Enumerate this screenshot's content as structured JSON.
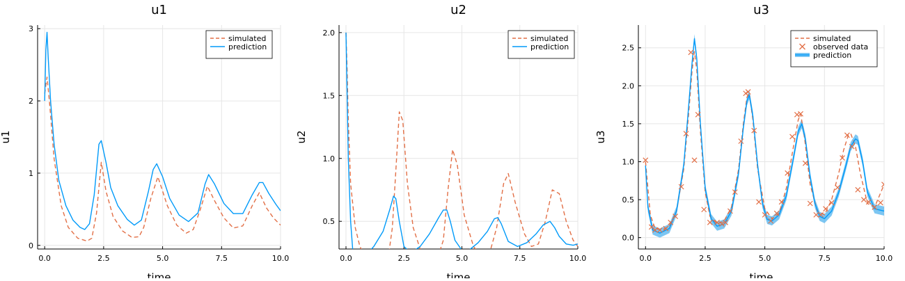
{
  "colors": {
    "simulated": "#e26f46",
    "prediction": "#009af9",
    "band": "#52b3ee"
  },
  "chart_data": [
    {
      "type": "line",
      "title": "u1",
      "xlabel": "time",
      "ylabel": "u1",
      "xlim": [
        -0.3,
        10.0
      ],
      "ylim": [
        -0.05,
        3.05
      ],
      "xticks": [
        0.0,
        2.5,
        5.0,
        7.5,
        10.0
      ],
      "xtick_labels": [
        "0.0",
        "2.5",
        "5.0",
        "7.5",
        "10.0"
      ],
      "yticks": [
        0,
        1,
        2,
        3
      ],
      "ytick_labels": [
        "0",
        "1",
        "2",
        "3"
      ],
      "grid": true,
      "legend_position": "top-right",
      "legend": [
        {
          "label": "simulated",
          "kind": "dashed"
        },
        {
          "label": "prediction",
          "kind": "line"
        }
      ],
      "series": [
        {
          "name": "simulated",
          "style": "dashed",
          "x": [
            0.0,
            0.1,
            0.2,
            0.4,
            0.7,
            1.0,
            1.4,
            1.8,
            2.0,
            2.2,
            2.4,
            2.6,
            2.9,
            3.3,
            3.7,
            4.0,
            4.2,
            4.5,
            4.8,
            5.2,
            5.6,
            6.0,
            6.3,
            6.6,
            6.9,
            7.2,
            7.6,
            8.0,
            8.4,
            8.8,
            9.1,
            9.4,
            9.7,
            10.0
          ],
          "y": [
            2.1,
            2.33,
            2.0,
            1.2,
            0.55,
            0.25,
            0.1,
            0.06,
            0.1,
            0.45,
            1.15,
            0.75,
            0.4,
            0.2,
            0.11,
            0.12,
            0.25,
            0.65,
            0.95,
            0.55,
            0.28,
            0.17,
            0.22,
            0.5,
            0.82,
            0.62,
            0.38,
            0.24,
            0.27,
            0.55,
            0.73,
            0.52,
            0.38,
            0.28
          ]
        },
        {
          "name": "prediction",
          "style": "solid",
          "x": [
            0.0,
            0.05,
            0.1,
            0.15,
            0.25,
            0.4,
            0.6,
            0.9,
            1.2,
            1.5,
            1.7,
            1.9,
            2.1,
            2.3,
            2.4,
            2.6,
            2.8,
            3.1,
            3.5,
            3.8,
            4.1,
            4.4,
            4.6,
            4.75,
            5.0,
            5.3,
            5.7,
            6.1,
            6.5,
            6.8,
            6.95,
            7.2,
            7.6,
            8.0,
            8.4,
            8.8,
            9.1,
            9.25,
            9.5,
            9.8,
            10.0
          ],
          "y": [
            2.0,
            2.7,
            2.95,
            2.6,
            2.0,
            1.4,
            0.9,
            0.55,
            0.35,
            0.25,
            0.22,
            0.3,
            0.7,
            1.4,
            1.45,
            1.15,
            0.8,
            0.55,
            0.36,
            0.28,
            0.35,
            0.75,
            1.05,
            1.13,
            0.95,
            0.65,
            0.42,
            0.33,
            0.45,
            0.85,
            0.98,
            0.85,
            0.58,
            0.44,
            0.44,
            0.7,
            0.87,
            0.87,
            0.72,
            0.57,
            0.48
          ]
        }
      ]
    },
    {
      "type": "line",
      "title": "u2",
      "xlabel": "time",
      "ylabel": "u2",
      "xlim": [
        -0.3,
        10.0
      ],
      "ylim": [
        0.28,
        2.06
      ],
      "xticks": [
        0.0,
        2.5,
        5.0,
        7.5,
        10.0
      ],
      "xtick_labels": [
        "0.0",
        "2.5",
        "5.0",
        "7.5",
        "10.0"
      ],
      "yticks": [
        0.5,
        1.0,
        1.5,
        2.0
      ],
      "ytick_labels": [
        "0.5",
        "1.0",
        "1.5",
        "2.0"
      ],
      "grid": true,
      "legend_position": "top-right",
      "legend": [
        {
          "label": "simulated",
          "kind": "dashed"
        },
        {
          "label": "prediction",
          "kind": "line"
        }
      ],
      "series": [
        {
          "name": "simulated",
          "style": "dashed",
          "x": [
            0.0,
            0.05,
            0.1,
            0.2,
            0.4,
            0.6,
            0.9,
            1.2,
            1.5,
            1.8,
            2.0,
            2.15,
            2.3,
            2.45,
            2.65,
            2.9,
            3.2,
            3.6,
            3.9,
            4.2,
            4.4,
            4.6,
            4.8,
            5.1,
            5.5,
            5.9,
            6.2,
            6.5,
            6.8,
            7.0,
            7.3,
            7.7,
            8.0,
            8.3,
            8.6,
            8.9,
            9.2,
            9.5,
            9.8,
            10.0
          ],
          "y": [
            2.0,
            1.7,
            1.3,
            0.8,
            0.45,
            0.3,
            0.2,
            0.15,
            0.13,
            0.18,
            0.45,
            0.9,
            1.37,
            1.3,
            0.8,
            0.45,
            0.28,
            0.2,
            0.18,
            0.35,
            0.75,
            1.07,
            0.95,
            0.55,
            0.3,
            0.21,
            0.25,
            0.45,
            0.8,
            0.88,
            0.65,
            0.4,
            0.3,
            0.32,
            0.5,
            0.75,
            0.72,
            0.5,
            0.35,
            0.3
          ]
        },
        {
          "name": "prediction",
          "style": "solid",
          "x": [
            0.0,
            0.05,
            0.1,
            0.2,
            0.3,
            0.5,
            0.8,
            1.2,
            1.6,
            1.9,
            2.05,
            2.15,
            2.3,
            2.5,
            2.8,
            3.2,
            3.6,
            4.0,
            4.2,
            4.35,
            4.5,
            4.7,
            5.0,
            5.3,
            5.7,
            6.1,
            6.4,
            6.55,
            6.7,
            7.0,
            7.4,
            7.8,
            8.2,
            8.5,
            8.8,
            9.0,
            9.2,
            9.5,
            9.8,
            10.0
          ],
          "y": [
            2.0,
            1.5,
            1.0,
            0.5,
            0.25,
            0.2,
            0.22,
            0.3,
            0.42,
            0.6,
            0.7,
            0.68,
            0.5,
            0.3,
            0.25,
            0.3,
            0.4,
            0.53,
            0.59,
            0.59,
            0.5,
            0.35,
            0.27,
            0.27,
            0.33,
            0.42,
            0.52,
            0.53,
            0.48,
            0.34,
            0.3,
            0.33,
            0.4,
            0.47,
            0.5,
            0.45,
            0.38,
            0.32,
            0.31,
            0.32
          ]
        }
      ]
    },
    {
      "type": "line",
      "title": "u3",
      "xlabel": "time",
      "ylabel": "u3",
      "xlim": [
        -0.3,
        10.0
      ],
      "ylim": [
        -0.15,
        2.8
      ],
      "xticks": [
        0.0,
        2.5,
        5.0,
        7.5,
        10.0
      ],
      "xtick_labels": [
        "0.0",
        "2.5",
        "5.0",
        "7.5",
        "10.0"
      ],
      "yticks": [
        0.0,
        0.5,
        1.0,
        1.5,
        2.0,
        2.5
      ],
      "ytick_labels": [
        "0.0",
        "0.5",
        "1.0",
        "1.5",
        "2.0",
        "2.5"
      ],
      "grid": true,
      "legend_position": "top-right",
      "legend": [
        {
          "label": "simulated",
          "kind": "dashed"
        },
        {
          "label": "observed data",
          "kind": "cross"
        },
        {
          "label": "prediction",
          "kind": "band"
        }
      ],
      "series": [
        {
          "name": "simulated",
          "style": "dashed",
          "x": [
            0.0,
            0.2,
            0.4,
            0.7,
            1.0,
            1.3,
            1.6,
            1.8,
            1.95,
            2.05,
            2.15,
            2.3,
            2.5,
            2.7,
            3.0,
            3.3,
            3.6,
            3.9,
            4.1,
            4.25,
            4.35,
            4.5,
            4.7,
            5.0,
            5.3,
            5.6,
            5.9,
            6.2,
            6.4,
            6.5,
            6.65,
            6.9,
            7.2,
            7.5,
            7.8,
            8.1,
            8.3,
            8.5,
            8.6,
            8.8,
            9.0,
            9.3,
            9.6,
            10.0
          ],
          "y": [
            1.0,
            0.3,
            0.12,
            0.1,
            0.15,
            0.35,
            0.9,
            1.6,
            2.2,
            2.45,
            2.2,
            1.4,
            0.6,
            0.28,
            0.18,
            0.22,
            0.4,
            0.9,
            1.5,
            1.85,
            1.9,
            1.55,
            0.9,
            0.38,
            0.25,
            0.32,
            0.65,
            1.2,
            1.55,
            1.63,
            1.35,
            0.7,
            0.35,
            0.3,
            0.5,
            0.85,
            1.15,
            1.35,
            1.37,
            1.2,
            0.85,
            0.45,
            0.4,
            0.7
          ]
        },
        {
          "name": "prediction",
          "style": "solid",
          "x": [
            0.0,
            0.1,
            0.3,
            0.6,
            1.0,
            1.3,
            1.6,
            1.8,
            1.95,
            2.05,
            2.15,
            2.3,
            2.5,
            2.75,
            3.0,
            3.3,
            3.6,
            3.9,
            4.1,
            4.25,
            4.35,
            4.5,
            4.7,
            4.9,
            5.1,
            5.3,
            5.6,
            5.9,
            6.2,
            6.4,
            6.55,
            6.7,
            6.9,
            7.1,
            7.3,
            7.5,
            7.8,
            8.1,
            8.4,
            8.6,
            8.8,
            8.9,
            9.1,
            9.3,
            9.6,
            10.0
          ],
          "y": [
            0.95,
            0.4,
            0.1,
            0.06,
            0.12,
            0.35,
            0.95,
            1.7,
            2.3,
            2.62,
            2.35,
            1.5,
            0.65,
            0.25,
            0.15,
            0.18,
            0.35,
            0.85,
            1.45,
            1.8,
            1.88,
            1.6,
            0.95,
            0.45,
            0.24,
            0.22,
            0.3,
            0.55,
            1.05,
            1.4,
            1.5,
            1.3,
            0.8,
            0.45,
            0.28,
            0.25,
            0.35,
            0.6,
            0.95,
            1.2,
            1.3,
            1.28,
            1.0,
            0.6,
            0.38,
            0.35
          ]
        }
      ],
      "band": {
        "name": "prediction",
        "half_width": 0.06
      },
      "scatter": {
        "name": "observed data",
        "x": [
          0.0,
          0.25,
          0.4,
          0.6,
          0.85,
          1.05,
          1.25,
          1.5,
          1.7,
          1.9,
          2.05,
          2.2,
          2.45,
          2.7,
          3.0,
          3.2,
          3.35,
          3.55,
          3.75,
          4.0,
          4.2,
          4.3,
          4.55,
          4.75,
          5.0,
          5.25,
          5.5,
          5.7,
          5.95,
          6.15,
          6.35,
          6.5,
          6.7,
          6.9,
          7.15,
          7.35,
          7.55,
          7.8,
          8.05,
          8.25,
          8.45,
          8.65,
          8.9,
          9.15,
          9.35,
          9.6,
          9.85,
          10.0
        ],
        "y": [
          1.02,
          0.14,
          0.1,
          0.1,
          0.12,
          0.2,
          0.28,
          0.67,
          1.37,
          2.44,
          1.02,
          1.62,
          0.37,
          0.2,
          0.2,
          0.18,
          0.2,
          0.35,
          0.6,
          1.27,
          1.9,
          1.92,
          1.41,
          0.47,
          0.3,
          0.22,
          0.32,
          0.47,
          0.85,
          1.33,
          1.62,
          1.63,
          0.98,
          0.45,
          0.3,
          0.3,
          0.38,
          0.46,
          0.66,
          1.05,
          1.35,
          1.2,
          0.63,
          0.5,
          0.47,
          0.4,
          0.46,
          0.7
        ]
      }
    }
  ]
}
